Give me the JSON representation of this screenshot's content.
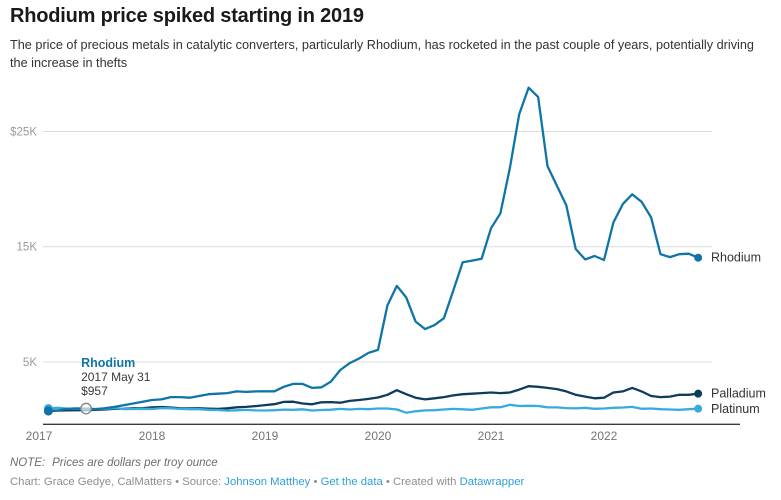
{
  "title": "Rhodium price spiked starting in 2019",
  "subtitle": "The price of precious metals in catalytic converters, particularly Rhodium, has rocketed in the past couple of years, potentially driving the increase in thefts",
  "note": {
    "prefix": "NOTE:",
    "text": "Prices are dollars per troy ounce"
  },
  "credit": {
    "chart_by": "Chart: Grace Gedye, CalMatters",
    "sep1": " • Source: ",
    "source_link": "Johnson Matthey",
    "sep2": " • ",
    "data_link": "Get the data",
    "sep3": " • Created with ",
    "tool_link": "Datawrapper"
  },
  "colors": {
    "rhodium": "#0f75a6",
    "palladium": "#0e3d5c",
    "platinum": "#38abdd",
    "link": "#2da0d8",
    "grid": "#dcdcdc",
    "axis": "#3b3b3b",
    "y_tick_label": "#9b9b9b",
    "x_tick_label": "#757575",
    "end_label": "#333333"
  },
  "chart_data": {
    "type": "line",
    "unit": "US dollars per troy ounce",
    "x_start": "2017-01",
    "x_end": "2022-10",
    "points_cadence": "monthly",
    "x_tick_years": [
      "2017",
      "2018",
      "2019",
      "2020",
      "2021",
      "2022"
    ],
    "y_ticks": [
      {
        "label": "$25K",
        "value": 25000
      },
      {
        "label": "15K",
        "value": 15000
      },
      {
        "label": "5K",
        "value": 5000
      }
    ],
    "ylim": [
      0,
      29500
    ],
    "grid": "horizontal-only",
    "legend": "end-of-line-labels",
    "annotation": {
      "title": "Rhodium",
      "date": "2017 May 31",
      "value_label": "$957",
      "month_index": 4,
      "value": 957
    },
    "series": [
      {
        "name": "Rhodium",
        "color_key": "rhodium",
        "values": [
          780,
          800,
          940,
          970,
          957,
          900,
          980,
          1100,
          1250,
          1400,
          1550,
          1700,
          1750,
          1950,
          1950,
          1900,
          2050,
          2200,
          2250,
          2300,
          2450,
          2400,
          2450,
          2460,
          2460,
          2850,
          3100,
          3100,
          2750,
          2800,
          3300,
          4300,
          4900,
          5300,
          5800,
          6050,
          9900,
          11600,
          10600,
          8500,
          7850,
          8200,
          8800,
          11200,
          13650,
          13800,
          13950,
          16600,
          17900,
          21800,
          26500,
          28800,
          28000,
          22000,
          20300,
          18600,
          14800,
          13900,
          14200,
          13850,
          17100,
          18700,
          19550,
          18900,
          17550,
          14350,
          14100,
          14350,
          14400,
          14050
        ]
      },
      {
        "name": "Palladium",
        "color_key": "palladium",
        "values": [
          740,
          780,
          800,
          820,
          820,
          850,
          880,
          930,
          940,
          980,
          1000,
          1060,
          1090,
          1050,
          980,
          970,
          980,
          950,
          930,
          980,
          1070,
          1100,
          1170,
          1260,
          1340,
          1540,
          1550,
          1400,
          1330,
          1500,
          1520,
          1470,
          1620,
          1700,
          1800,
          1920,
          2150,
          2550,
          2200,
          1900,
          1750,
          1850,
          1950,
          2100,
          2200,
          2250,
          2300,
          2350,
          2300,
          2350,
          2600,
          2900,
          2850,
          2750,
          2650,
          2450,
          2150,
          2000,
          1850,
          1900,
          2350,
          2450,
          2750,
          2450,
          2050,
          1950,
          2000,
          2150,
          2150,
          2250
        ]
      },
      {
        "name": "Platinum",
        "color_key": "platinum",
        "values": [
          970,
          1020,
          950,
          950,
          940,
          920,
          930,
          1000,
          910,
          920,
          940,
          920,
          1000,
          980,
          930,
          900,
          900,
          850,
          830,
          780,
          810,
          840,
          800,
          790,
          820,
          870,
          850,
          890,
          790,
          830,
          860,
          930,
          880,
          930,
          900,
          960,
          960,
          880,
          600,
          720,
          800,
          820,
          880,
          930,
          890,
          850,
          960,
          1070,
          1080,
          1280,
          1180,
          1200,
          1180,
          1070,
          1060,
          1000,
          970,
          1020,
          940,
          960,
          1020,
          1050,
          1100,
          940,
          960,
          900,
          880,
          850,
          900,
          950
        ]
      }
    ]
  }
}
